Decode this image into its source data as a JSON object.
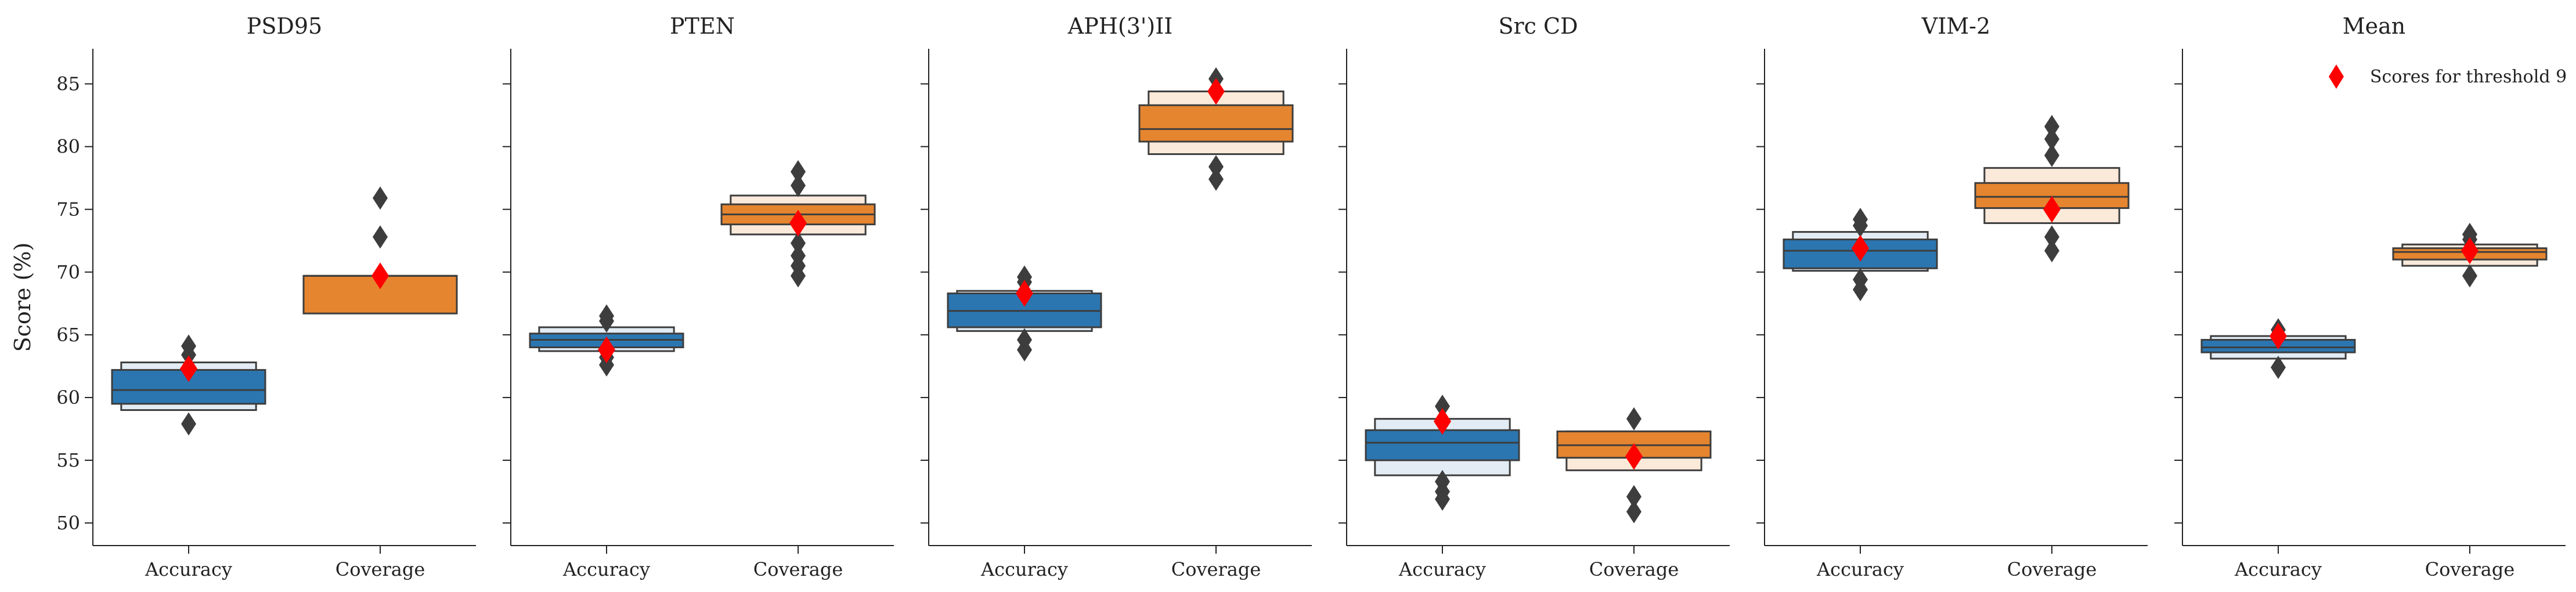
{
  "chart_data": {
    "type": "boxen",
    "ylabel": "Score (%)",
    "ylim": [
      48.2,
      87.8
    ],
    "yticks": [
      50,
      55,
      60,
      65,
      70,
      75,
      80,
      85
    ],
    "categories": [
      "Accuracy",
      "Coverage"
    ],
    "legend": {
      "label": "Scores for threshold 9",
      "position": "top-right"
    },
    "colors": {
      "Accuracy": "#2b76b0",
      "Coverage": "#e5852f",
      "Accuracy_light": "#e3ecf4",
      "Coverage_light": "#fbe9da",
      "marker": "#ff0000",
      "outlier": "#3d3d3d",
      "edge": "#3d3d3d"
    },
    "panels": [
      {
        "title": "PSD95",
        "boxes": [
          {
            "category": "Accuracy",
            "median": 60.6,
            "levels": [
              [
                59.5,
                62.2
              ],
              [
                59.0,
                62.8
              ]
            ],
            "outliers": [
              57.9,
              63.4,
              64.1
            ],
            "marker": 62.3
          },
          {
            "category": "Coverage",
            "median": 69.7,
            "levels": [
              [
                66.7,
                69.7
              ]
            ],
            "outliers": [
              72.8,
              75.9
            ],
            "marker": 69.7
          }
        ]
      },
      {
        "title": "PTEN",
        "boxes": [
          {
            "category": "Accuracy",
            "median": 64.6,
            "levels": [
              [
                64.0,
                65.1
              ],
              [
                63.7,
                65.6
              ]
            ],
            "outliers": [
              62.6,
              63.2,
              66.1,
              66.5
            ],
            "marker": 63.8
          },
          {
            "category": "Coverage",
            "median": 74.6,
            "levels": [
              [
                73.8,
                75.4
              ],
              [
                73.0,
                76.1
              ]
            ],
            "outliers": [
              69.7,
              70.5,
              71.3,
              72.3,
              76.9,
              78.0
            ],
            "marker": 73.9
          }
        ]
      },
      {
        "title": "APH(3')II",
        "boxes": [
          {
            "category": "Accuracy",
            "median": 66.9,
            "levels": [
              [
                65.6,
                68.3
              ],
              [
                65.3,
                68.5
              ]
            ],
            "outliers": [
              63.8,
              64.6,
              69.2,
              69.6
            ],
            "marker": 68.3
          },
          {
            "category": "Coverage",
            "median": 81.4,
            "levels": [
              [
                80.4,
                83.3
              ],
              [
                79.4,
                84.4
              ]
            ],
            "outliers": [
              77.4,
              78.4,
              85.4
            ],
            "marker": 84.4
          }
        ]
      },
      {
        "title": "Src CD",
        "boxes": [
          {
            "category": "Accuracy",
            "median": 56.4,
            "levels": [
              [
                55.0,
                57.4
              ],
              [
                53.8,
                58.3
              ]
            ],
            "outliers": [
              51.9,
              52.5,
              53.3,
              59.3
            ],
            "marker": 58.1
          },
          {
            "category": "Coverage",
            "median": 56.2,
            "levels": [
              [
                55.2,
                57.3
              ],
              [
                54.2,
                57.3
              ]
            ],
            "outliers": [
              50.9,
              52.1,
              58.3
            ],
            "marker": 55.3
          }
        ]
      },
      {
        "title": "VIM-2",
        "boxes": [
          {
            "category": "Accuracy",
            "median": 71.7,
            "levels": [
              [
                70.3,
                72.6
              ],
              [
                70.1,
                73.2
              ]
            ],
            "outliers": [
              68.6,
              69.4,
              73.7,
              74.2
            ],
            "marker": 71.9
          },
          {
            "category": "Coverage",
            "median": 76.0,
            "levels": [
              [
                75.1,
                77.1
              ],
              [
                73.9,
                78.3
              ]
            ],
            "outliers": [
              71.7,
              72.8,
              79.3,
              80.6,
              81.6
            ],
            "marker": 75.0
          }
        ]
      },
      {
        "title": "Mean",
        "boxes": [
          {
            "category": "Accuracy",
            "median": 64.0,
            "levels": [
              [
                63.6,
                64.6
              ],
              [
                63.1,
                64.9
              ]
            ],
            "outliers": [
              62.4,
              65.4
            ],
            "marker": 64.9
          },
          {
            "category": "Coverage",
            "median": 71.6,
            "levels": [
              [
                71.0,
                71.9
              ],
              [
                70.5,
                72.2
              ]
            ],
            "outliers": [
              69.7,
              72.6,
              73.0
            ],
            "marker": 71.7
          }
        ]
      }
    ]
  }
}
